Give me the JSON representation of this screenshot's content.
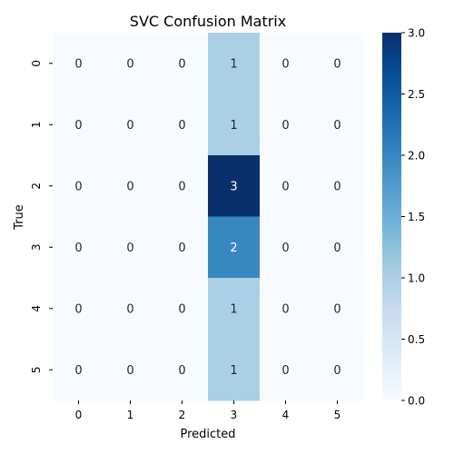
{
  "chart_data": {
    "type": "heatmap",
    "title": "SVC Confusion Matrix",
    "xlabel": "Predicted",
    "ylabel": "True",
    "x_categories": [
      "0",
      "1",
      "2",
      "3",
      "4",
      "5"
    ],
    "y_categories": [
      "0",
      "1",
      "2",
      "3",
      "4",
      "5"
    ],
    "matrix": [
      [
        0,
        0,
        0,
        1,
        0,
        0
      ],
      [
        0,
        0,
        0,
        1,
        0,
        0
      ],
      [
        0,
        0,
        0,
        3,
        0,
        0
      ],
      [
        0,
        0,
        0,
        2,
        0,
        0
      ],
      [
        0,
        0,
        0,
        1,
        0,
        0
      ],
      [
        0,
        0,
        0,
        1,
        0,
        0
      ]
    ],
    "colorbar": {
      "vmin": 0.0,
      "vmax": 3.0,
      "ticks": [
        "0.0",
        "0.5",
        "1.0",
        "1.5",
        "2.0",
        "2.5",
        "3.0"
      ],
      "colormap": "Blues"
    },
    "annotations": true
  }
}
